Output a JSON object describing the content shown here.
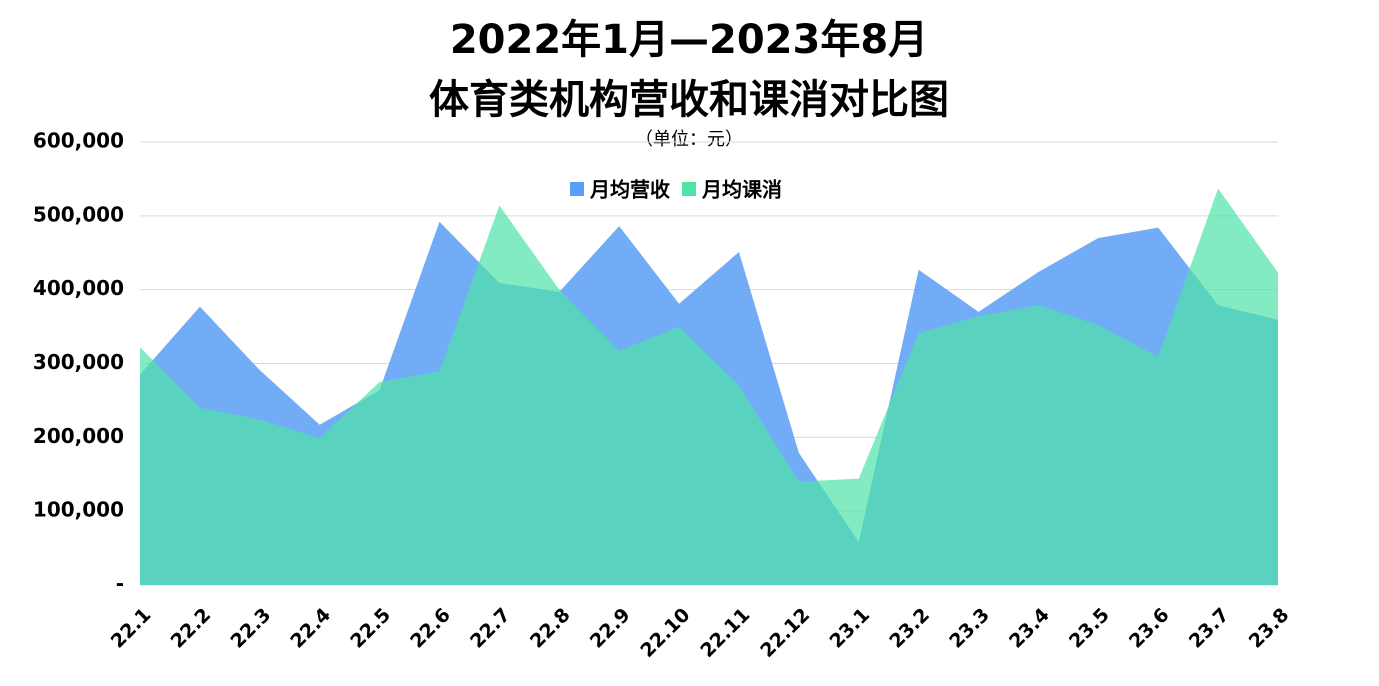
{
  "chart_data": {
    "type": "area",
    "title": [
      "2022年1月—2023年8月",
      "体育类机构营收和课消对比图"
    ],
    "subtitle": "（单位：元）",
    "categories": [
      "22.1",
      "22.2",
      "22.3",
      "22.4",
      "22.5",
      "22.6",
      "22.7",
      "22.8",
      "22.9",
      "22.10",
      "22.11",
      "22.12",
      "23.1",
      "23.2",
      "23.3",
      "23.4",
      "23.5",
      "23.6",
      "23.7",
      "23.8"
    ],
    "series": [
      {
        "name": "月均营收",
        "color": "#5b9ef5",
        "values": [
          285000,
          377000,
          291000,
          217000,
          264000,
          492000,
          409000,
          397000,
          486000,
          381000,
          451000,
          179000,
          58000,
          427000,
          370000,
          424000,
          470000,
          484000,
          379000,
          359000
        ]
      },
      {
        "name": "月均课消",
        "color": "#4fe3a8",
        "values": [
          322000,
          240000,
          224000,
          199000,
          275000,
          289000,
          514000,
          400000,
          317000,
          350000,
          270000,
          140000,
          144000,
          341000,
          364000,
          379000,
          352000,
          309000,
          537000,
          423000
        ]
      }
    ],
    "ylim": [
      0,
      600000
    ],
    "yticks": [
      {
        "value": 0,
        "label": "-"
      },
      {
        "value": 100000,
        "label": "100,000"
      },
      {
        "value": 200000,
        "label": "200,000"
      },
      {
        "value": 300000,
        "label": "300,000"
      },
      {
        "value": 400000,
        "label": "400,000"
      },
      {
        "value": 500000,
        "label": "500,000"
      },
      {
        "value": 600000,
        "label": "600,000"
      }
    ],
    "grid": true,
    "legend": "top"
  }
}
